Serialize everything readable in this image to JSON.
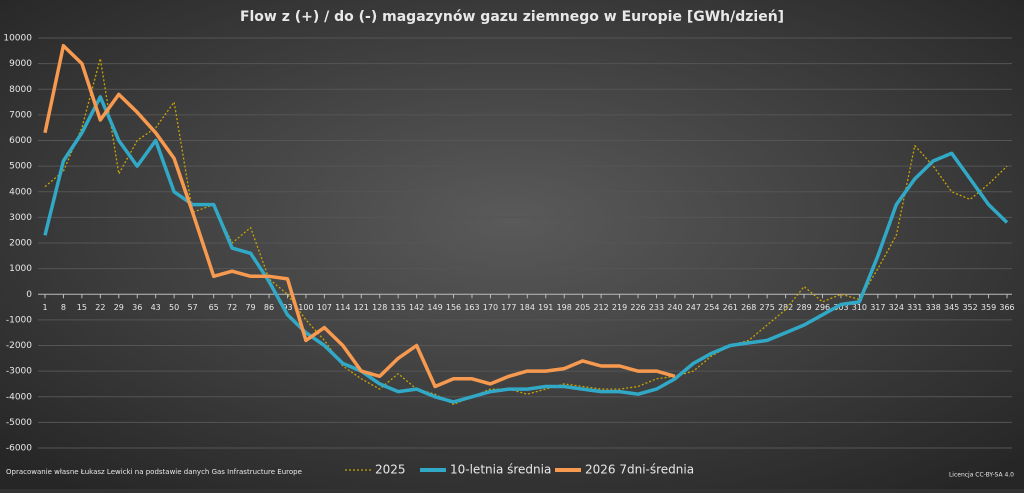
{
  "chart_data": {
    "type": "line",
    "title": "Flow z (+) / do (-) magazynów gazu ziemnego w Europie [GWh/dzień]",
    "source": "Opracowanie własne Łukasz Lewicki na podstawie danych Gas Infrastructure Europe",
    "license": "Licencja CC-BY-SA 4.0",
    "x": [
      1,
      8,
      15,
      22,
      29,
      36,
      43,
      50,
      57,
      65,
      72,
      79,
      86,
      93,
      100,
      107,
      114,
      121,
      128,
      135,
      142,
      149,
      156,
      163,
      170,
      177,
      184,
      191,
      198,
      205,
      212,
      219,
      226,
      233,
      240,
      247,
      254,
      261,
      268,
      275,
      282,
      289,
      296,
      303,
      310,
      317,
      324,
      331,
      338,
      345,
      352,
      359,
      366
    ],
    "xlim": [
      1,
      366
    ],
    "xticks": [
      1,
      8,
      15,
      22,
      29,
      36,
      43,
      50,
      57,
      65,
      72,
      79,
      86,
      93,
      100,
      107,
      114,
      121,
      128,
      135,
      142,
      149,
      156,
      163,
      170,
      177,
      184,
      191,
      198,
      205,
      212,
      219,
      226,
      233,
      240,
      247,
      254,
      261,
      268,
      275,
      282,
      289,
      296,
      303,
      310,
      317,
      324,
      331,
      338,
      345,
      352,
      359,
      366
    ],
    "ylim": [
      -6000,
      10000
    ],
    "yticks": [
      -6000,
      -5000,
      -4000,
      -3000,
      -2000,
      -1000,
      0,
      1000,
      2000,
      3000,
      4000,
      5000,
      6000,
      7000,
      8000,
      9000,
      10000
    ],
    "grid": true,
    "legend": "bottom",
    "series": [
      {
        "name": "2025",
        "color": "#c9a400",
        "style": "dotted",
        "values": [
          4200,
          4800,
          6500,
          9200,
          4700,
          6000,
          6500,
          7500,
          3200,
          3500,
          2000,
          2600,
          600,
          0,
          -1000,
          -1800,
          -2800,
          -3300,
          -3700,
          -3100,
          -3700,
          -3900,
          -4300,
          -4000,
          -3700,
          -3700,
          -3900,
          -3700,
          -3500,
          -3600,
          -3700,
          -3700,
          -3600,
          -3300,
          -3200,
          -3000,
          -2400,
          -2000,
          -1800,
          -1200,
          -600,
          300,
          -300,
          0,
          -200,
          1000,
          2300,
          5800,
          5000,
          4000,
          3700,
          4300,
          5000
        ]
      },
      {
        "name": "10-letnia średnia",
        "color": "#31a9c6",
        "style": "solid",
        "values": [
          2300,
          5200,
          6300,
          7700,
          6000,
          5000,
          6000,
          4000,
          3500,
          3500,
          1800,
          1600,
          500,
          -800,
          -1500,
          -2000,
          -2700,
          -3000,
          -3500,
          -3800,
          -3700,
          -4000,
          -4200,
          -4000,
          -3800,
          -3700,
          -3700,
          -3600,
          -3600,
          -3700,
          -3800,
          -3800,
          -3900,
          -3700,
          -3300,
          -2700,
          -2300,
          -2000,
          -1900,
          -1800,
          -1500,
          -1200,
          -800,
          -400,
          -300,
          1500,
          3500,
          4500,
          5200,
          5500,
          4500,
          3500,
          2800
        ]
      },
      {
        "name": "2026 7dni-średnia",
        "color": "#f79a50",
        "style": "solid",
        "values": [
          6300,
          9700,
          9000,
          6800,
          7800,
          7100,
          6300,
          5300,
          3200,
          700,
          900,
          700,
          700,
          600,
          -1800,
          -1300,
          -2000,
          -3000,
          -3200,
          -2500,
          -2000,
          -3600,
          -3300,
          -3300,
          -3500,
          -3200,
          -3000,
          -3000,
          -2900,
          -2600,
          -2800,
          -2800,
          -3000,
          -3000,
          -3200,
          null,
          null,
          null,
          null,
          null,
          null,
          null,
          null,
          null,
          null,
          null,
          null,
          null,
          null,
          null,
          null,
          null,
          null
        ]
      }
    ]
  }
}
